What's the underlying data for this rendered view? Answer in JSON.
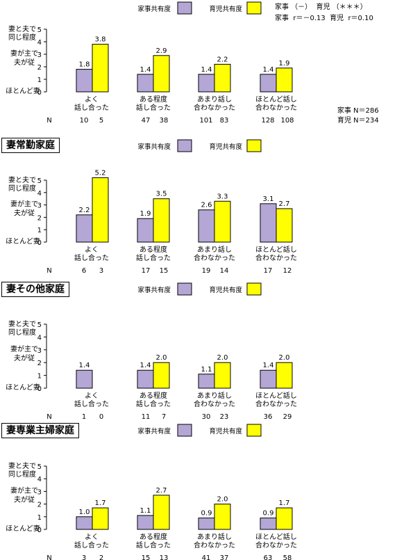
{
  "colors": {
    "kaji": "#b4a7d6",
    "ikuji": "#ffff00"
  },
  "legend": {
    "kaji": "家事共有度",
    "ikuji": "育児共有度"
  },
  "axis": {
    "ylim": [
      0,
      5
    ],
    "ticks": [
      "0",
      "1",
      "2",
      "3",
      "4",
      "5"
    ],
    "top_label_1": "妻と夫で",
    "top_label_2": "同じ程度",
    "mid_label_1": "妻が主で",
    "mid_label_2": "夫が従",
    "bottom_label": "ほとんど妻",
    "n_label": "N"
  },
  "categories": [
    [
      "よく",
      "話し合った"
    ],
    [
      "ある程度",
      "話し合った"
    ],
    [
      "あまり話し",
      "合わなかった"
    ],
    [
      "ほとんど話し",
      "合わなかった"
    ]
  ],
  "stats": {
    "line1": "家事 （－）  育児 （＊＊＊）",
    "line2": "家事  r＝－0.13  育児  r＝0.10",
    "n_line1": "家事 N＝286",
    "n_line2": "育児 N＝234"
  },
  "chart_data": [
    {
      "type": "bar",
      "title": "",
      "series": [
        {
          "name": "家事共有度",
          "values": [
            1.8,
            1.4,
            1.4,
            1.4
          ],
          "labels": [
            "1.8",
            "1.4",
            "1.4",
            "1.4"
          ]
        },
        {
          "name": "育児共有度",
          "values": [
            3.8,
            2.9,
            2.2,
            1.9
          ],
          "labels": [
            "3.8",
            "2.9",
            "2.2",
            "1.9"
          ]
        }
      ],
      "n": [
        [
          "10",
          "5"
        ],
        [
          "47",
          "38"
        ],
        [
          "101",
          "83"
        ],
        [
          "128",
          "108"
        ]
      ]
    },
    {
      "type": "bar",
      "title": "妻常勤家庭",
      "series": [
        {
          "name": "家事共有度",
          "values": [
            2.2,
            1.9,
            2.6,
            3.1
          ],
          "labels": [
            "2.2",
            "1.9",
            "2.6",
            "3.1"
          ]
        },
        {
          "name": "育児共有度",
          "values": [
            5.2,
            3.5,
            3.3,
            2.7
          ],
          "labels": [
            "5.2",
            "3.5",
            "3.3",
            "2.7"
          ]
        }
      ],
      "n": [
        [
          "6",
          "3"
        ],
        [
          "17",
          "15"
        ],
        [
          "19",
          "14"
        ],
        [
          "17",
          "12"
        ]
      ]
    },
    {
      "type": "bar",
      "title": "妻その他家庭",
      "series": [
        {
          "name": "家事共有度",
          "values": [
            1.4,
            1.4,
            1.1,
            1.4
          ],
          "labels": [
            "1.4",
            "1.4",
            "1.1",
            "1.4"
          ]
        },
        {
          "name": "育児共有度",
          "values": [
            null,
            2.0,
            2.0,
            2.0
          ],
          "labels": [
            "",
            "2.0",
            "2.0",
            "2.0"
          ]
        }
      ],
      "n": [
        [
          "1",
          "0"
        ],
        [
          "11",
          "7"
        ],
        [
          "30",
          "23"
        ],
        [
          "36",
          "29"
        ]
      ]
    },
    {
      "type": "bar",
      "title": "妻専業主婦家庭",
      "series": [
        {
          "name": "家事共有度",
          "values": [
            1.0,
            1.1,
            0.9,
            0.9
          ],
          "labels": [
            "1.0",
            "1.1",
            "0.9",
            "0.9"
          ]
        },
        {
          "name": "育児共有度",
          "values": [
            1.7,
            2.7,
            2.0,
            1.7
          ],
          "labels": [
            "1.7",
            "2.7",
            "2.0",
            "1.7"
          ]
        }
      ],
      "n": [
        [
          "3",
          "2"
        ],
        [
          "15",
          "13"
        ],
        [
          "41",
          "37"
        ],
        [
          "63",
          "58"
        ]
      ]
    }
  ]
}
